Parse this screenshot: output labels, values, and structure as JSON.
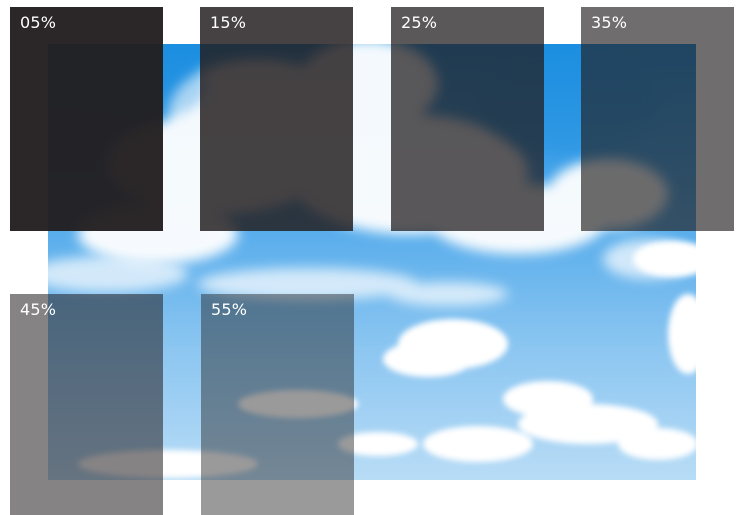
{
  "scene": {
    "image_subject": "blue-sky-clouds-photo"
  },
  "swatches": [
    {
      "label": "05%"
    },
    {
      "label": "15%"
    },
    {
      "label": "25%"
    },
    {
      "label": "35%"
    },
    {
      "label": "45%"
    },
    {
      "label": "55%"
    }
  ],
  "colors": {
    "tint": "#221e1f",
    "sky_top": "#1b8ee0",
    "sky_bottom": "#b8dcf6",
    "cloud": "#ffffff",
    "label_text": "#ffffff"
  }
}
